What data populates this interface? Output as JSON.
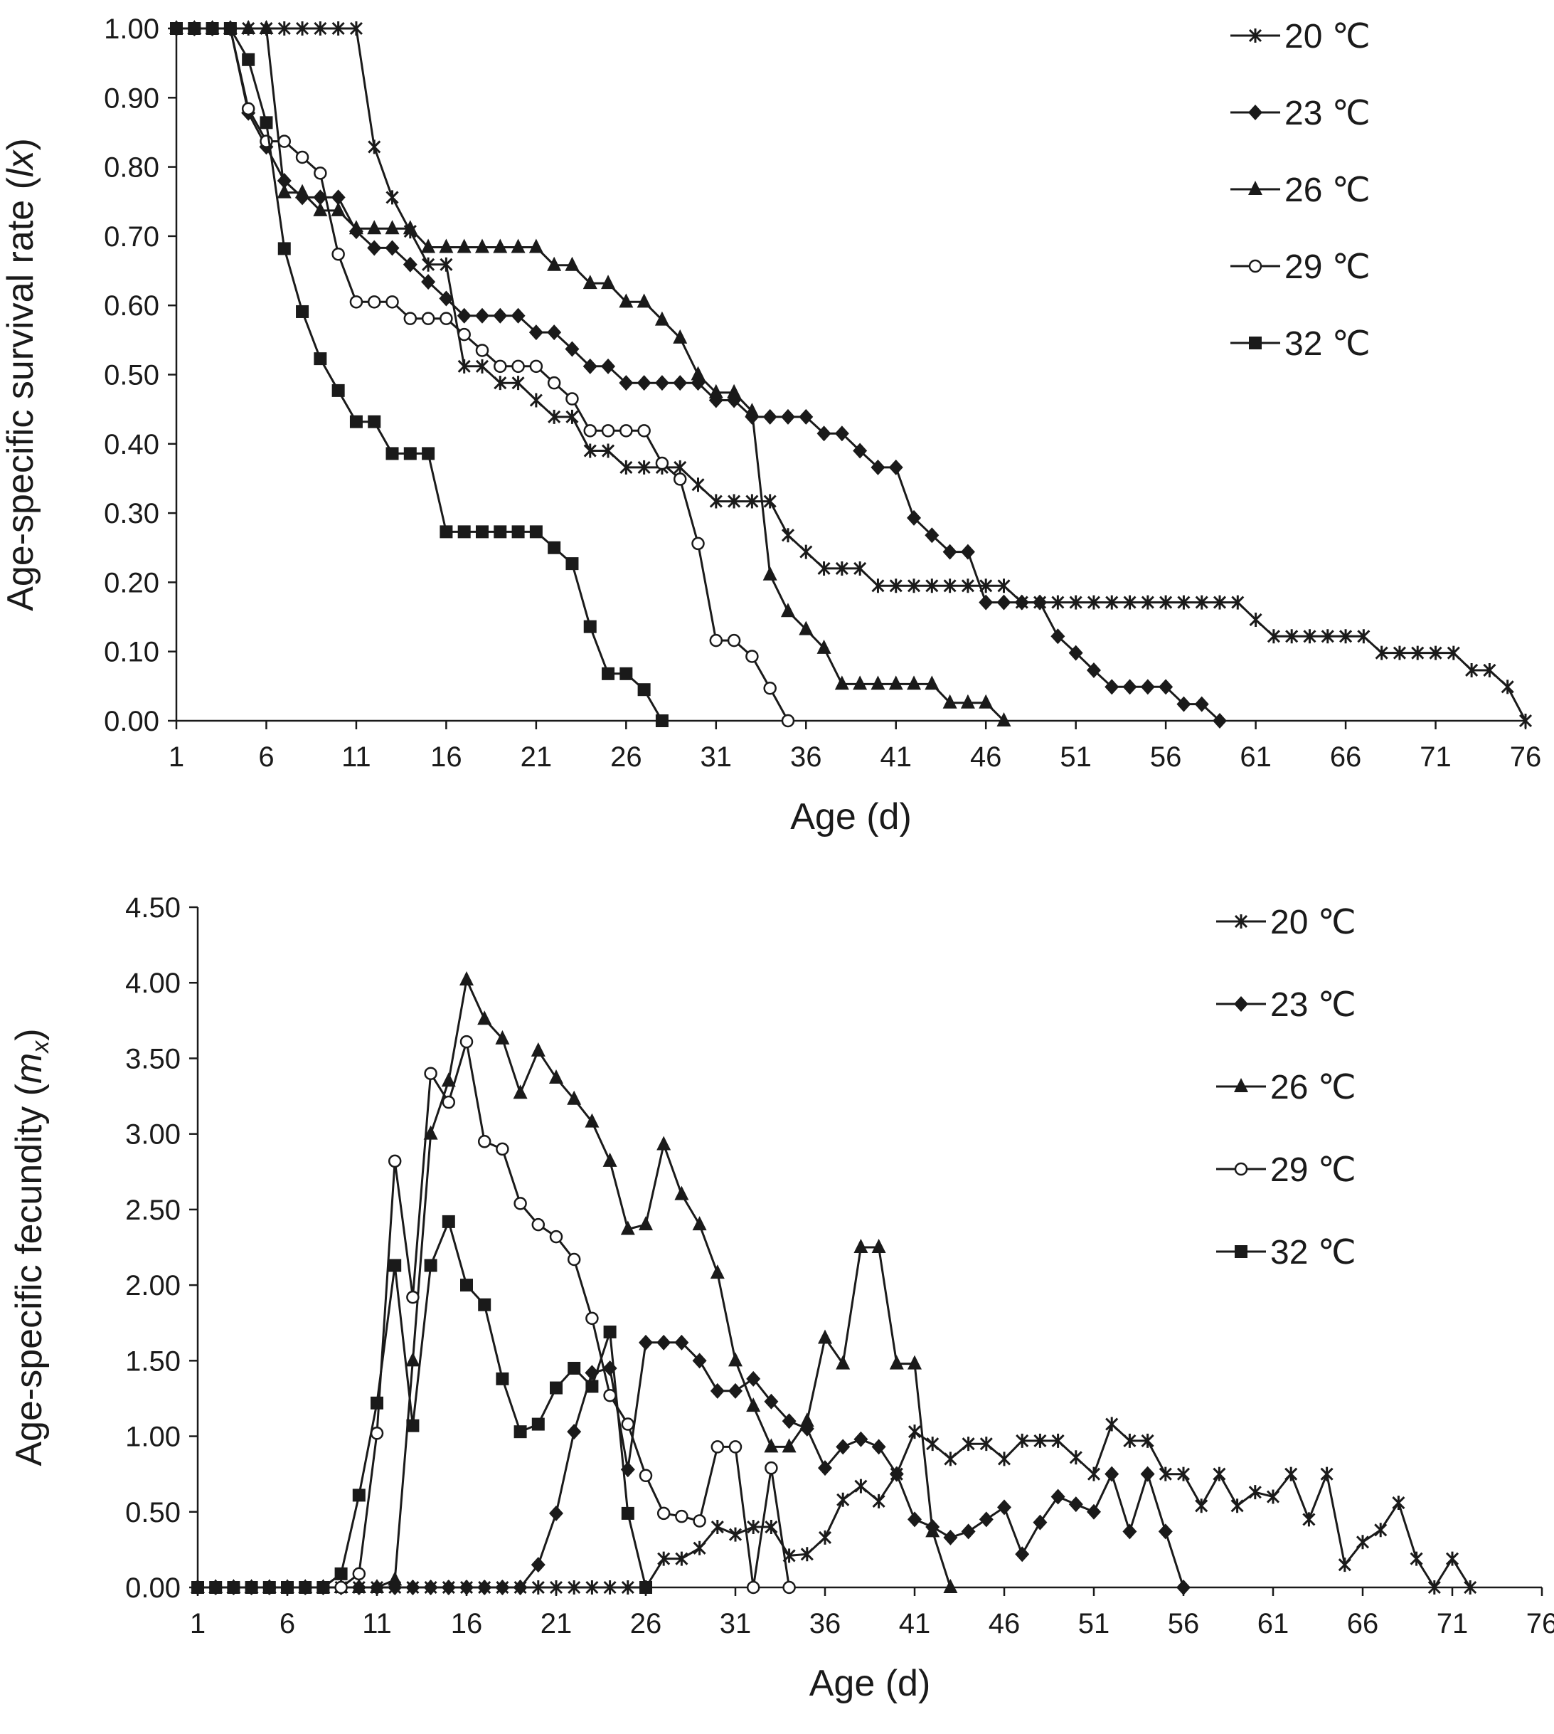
{
  "chart_data": [
    {
      "type": "line",
      "ylabel_prefix": "Age-specific survival rate (",
      "ylabel_symbol": "lx",
      "ylabel_suffix": ")",
      "xlabel": "Age (d)",
      "xlim": [
        1,
        76
      ],
      "ylim": [
        0,
        1
      ],
      "x_ticks": [
        "1",
        "6",
        "11",
        "16",
        "21",
        "26",
        "31",
        "36",
        "41",
        "46",
        "51",
        "56",
        "61",
        "66",
        "71",
        "76"
      ],
      "y_ticks": [
        "0.00",
        "0.10",
        "0.20",
        "0.30",
        "0.40",
        "0.50",
        "0.60",
        "0.70",
        "0.80",
        "0.90",
        "1.00"
      ],
      "grid": false,
      "legend_position": "top-right",
      "series": [
        {
          "name": "20 ℃",
          "marker": "star",
          "x": [
            1,
            2,
            3,
            4,
            5,
            6,
            7,
            8,
            9,
            10,
            11,
            12,
            13,
            14,
            15,
            16,
            17,
            18,
            19,
            20,
            21,
            22,
            23,
            24,
            25,
            26,
            27,
            28,
            29,
            30,
            31,
            32,
            33,
            34,
            35,
            36,
            37,
            38,
            39,
            40,
            41,
            42,
            43,
            44,
            45,
            46,
            47,
            48,
            49,
            50,
            51,
            52,
            53,
            54,
            55,
            56,
            57,
            58,
            59,
            60,
            61,
            62,
            63,
            64,
            65,
            66,
            67,
            68,
            69,
            70,
            71,
            72,
            73,
            74,
            75,
            76
          ],
          "y": [
            1,
            1,
            1,
            1,
            1,
            1,
            1,
            1,
            1,
            1,
            1,
            0.829,
            0.756,
            0.707,
            0.659,
            0.659,
            0.512,
            0.512,
            0.488,
            0.488,
            0.463,
            0.439,
            0.439,
            0.39,
            0.39,
            0.366,
            0.366,
            0.366,
            0.366,
            0.341,
            0.317,
            0.317,
            0.317,
            0.317,
            0.268,
            0.244,
            0.22,
            0.22,
            0.22,
            0.195,
            0.195,
            0.195,
            0.195,
            0.195,
            0.195,
            0.195,
            0.195,
            0.171,
            0.171,
            0.171,
            0.171,
            0.171,
            0.171,
            0.171,
            0.171,
            0.171,
            0.171,
            0.171,
            0.171,
            0.171,
            0.146,
            0.122,
            0.122,
            0.122,
            0.122,
            0.122,
            0.122,
            0.098,
            0.098,
            0.098,
            0.098,
            0.098,
            0.073,
            0.073,
            0.049,
            0
          ]
        },
        {
          "name": "23 ℃",
          "marker": "diamond",
          "x": [
            1,
            2,
            3,
            4,
            5,
            6,
            7,
            8,
            9,
            10,
            11,
            12,
            13,
            14,
            15,
            16,
            17,
            18,
            19,
            20,
            21,
            22,
            23,
            24,
            25,
            26,
            27,
            28,
            29,
            30,
            31,
            32,
            33,
            34,
            35,
            36,
            37,
            38,
            39,
            40,
            41,
            42,
            43,
            44,
            45,
            46,
            47,
            48,
            49,
            50,
            51,
            52,
            53,
            54,
            55,
            56,
            57,
            58,
            59
          ],
          "y": [
            1,
            1,
            1,
            1,
            0.878,
            0.829,
            0.78,
            0.756,
            0.756,
            0.756,
            0.707,
            0.683,
            0.683,
            0.659,
            0.634,
            0.61,
            0.585,
            0.585,
            0.585,
            0.585,
            0.561,
            0.561,
            0.537,
            0.512,
            0.512,
            0.488,
            0.488,
            0.488,
            0.488,
            0.488,
            0.463,
            0.463,
            0.439,
            0.439,
            0.439,
            0.439,
            0.415,
            0.415,
            0.39,
            0.366,
            0.366,
            0.293,
            0.268,
            0.244,
            0.244,
            0.171,
            0.171,
            0.171,
            0.171,
            0.122,
            0.098,
            0.073,
            0.049,
            0.049,
            0.049,
            0.049,
            0.024,
            0.024,
            0
          ]
        },
        {
          "name": "26 ℃",
          "marker": "triangle",
          "x": [
            1,
            2,
            3,
            4,
            5,
            6,
            7,
            8,
            9,
            10,
            11,
            12,
            13,
            14,
            15,
            16,
            17,
            18,
            19,
            20,
            21,
            22,
            23,
            24,
            25,
            26,
            27,
            28,
            29,
            30,
            31,
            32,
            33,
            34,
            35,
            36,
            37,
            38,
            39,
            40,
            41,
            42,
            43,
            44,
            45,
            46,
            47
          ],
          "y": [
            1,
            1,
            1,
            1,
            1,
            1,
            0.763,
            0.763,
            0.737,
            0.737,
            0.711,
            0.711,
            0.711,
            0.711,
            0.684,
            0.684,
            0.684,
            0.684,
            0.684,
            0.684,
            0.684,
            0.658,
            0.658,
            0.632,
            0.632,
            0.605,
            0.605,
            0.579,
            0.553,
            0.5,
            0.474,
            0.474,
            0.447,
            0.211,
            0.158,
            0.132,
            0.105,
            0.053,
            0.053,
            0.053,
            0.053,
            0.053,
            0.053,
            0.026,
            0.026,
            0.026,
            0
          ]
        },
        {
          "name": "29 ℃",
          "marker": "circle",
          "x": [
            1,
            2,
            3,
            4,
            5,
            6,
            7,
            8,
            9,
            10,
            11,
            12,
            13,
            14,
            15,
            16,
            17,
            18,
            19,
            20,
            21,
            22,
            23,
            24,
            25,
            26,
            27,
            28,
            29,
            30,
            31,
            32,
            33,
            34,
            35
          ],
          "y": [
            1,
            1,
            1,
            1,
            0.884,
            0.837,
            0.837,
            0.814,
            0.791,
            0.674,
            0.605,
            0.605,
            0.605,
            0.581,
            0.581,
            0.581,
            0.558,
            0.535,
            0.512,
            0.512,
            0.512,
            0.488,
            0.465,
            0.419,
            0.419,
            0.419,
            0.419,
            0.372,
            0.349,
            0.256,
            0.116,
            0.116,
            0.093,
            0.047,
            0
          ]
        },
        {
          "name": "32 ℃",
          "marker": "square",
          "x": [
            1,
            2,
            3,
            4,
            5,
            6,
            7,
            8,
            9,
            10,
            11,
            12,
            13,
            14,
            15,
            16,
            17,
            18,
            19,
            20,
            21,
            22,
            23,
            24,
            25,
            26,
            27,
            28
          ],
          "y": [
            1,
            1,
            1,
            1,
            0.955,
            0.864,
            0.682,
            0.591,
            0.523,
            0.477,
            0.432,
            0.432,
            0.386,
            0.386,
            0.386,
            0.273,
            0.273,
            0.273,
            0.273,
            0.273,
            0.273,
            0.25,
            0.227,
            0.136,
            0.068,
            0.068,
            0.045,
            0
          ]
        }
      ]
    },
    {
      "type": "line",
      "ylabel_prefix": "Age-specific fecundity (",
      "ylabel_symbol": "m",
      "ylabel_sub": "x",
      "ylabel_suffix": ")",
      "xlabel": "Age (d)",
      "xlim": [
        1,
        76
      ],
      "ylim": [
        0,
        4.5
      ],
      "x_ticks": [
        "1",
        "6",
        "11",
        "16",
        "21",
        "26",
        "31",
        "36",
        "41",
        "46",
        "51",
        "56",
        "61",
        "66",
        "71",
        "76"
      ],
      "y_ticks": [
        "0.00",
        "0.50",
        "1.00",
        "1.50",
        "2.00",
        "2.50",
        "3.00",
        "3.50",
        "4.00",
        "4.50"
      ],
      "grid": false,
      "legend_position": "top-right",
      "series": [
        {
          "name": "20 ℃",
          "marker": "star",
          "x": [
            1,
            2,
            3,
            4,
            5,
            6,
            7,
            8,
            9,
            10,
            11,
            12,
            13,
            14,
            15,
            16,
            17,
            18,
            19,
            20,
            21,
            22,
            23,
            24,
            25,
            26,
            27,
            28,
            29,
            30,
            31,
            32,
            33,
            34,
            35,
            36,
            37,
            38,
            39,
            40,
            41,
            42,
            43,
            44,
            45,
            46,
            47,
            48,
            49,
            50,
            51,
            52,
            53,
            54,
            55,
            56,
            57,
            58,
            59,
            60,
            61,
            62,
            63,
            64,
            65,
            66,
            67,
            68,
            69,
            70,
            71,
            72
          ],
          "y": [
            0,
            0,
            0,
            0,
            0,
            0,
            0,
            0,
            0,
            0,
            0,
            0,
            0,
            0,
            0,
            0,
            0,
            0,
            0,
            0,
            0,
            0,
            0,
            0,
            0,
            0,
            0.19,
            0.19,
            0.26,
            0.4,
            0.35,
            0.4,
            0.4,
            0.21,
            0.22,
            0.33,
            0.58,
            0.67,
            0.57,
            0.75,
            1.03,
            0.95,
            0.85,
            0.95,
            0.95,
            0.85,
            0.97,
            0.97,
            0.97,
            0.86,
            0.75,
            1.08,
            0.97,
            0.97,
            0.75,
            0.75,
            0.54,
            0.75,
            0.54,
            0.63,
            0.6,
            0.75,
            0.45,
            0.75,
            0.15,
            0.3,
            0.38,
            0.56,
            0.19,
            0,
            0.19,
            0
          ]
        },
        {
          "name": "23 ℃",
          "marker": "diamond",
          "x": [
            1,
            2,
            3,
            4,
            5,
            6,
            7,
            8,
            9,
            10,
            11,
            12,
            13,
            14,
            15,
            16,
            17,
            18,
            19,
            20,
            21,
            22,
            23,
            24,
            25,
            26,
            27,
            28,
            29,
            30,
            31,
            32,
            33,
            34,
            35,
            36,
            37,
            38,
            39,
            40,
            41,
            42,
            43,
            44,
            45,
            46,
            47,
            48,
            49,
            50,
            51,
            52,
            53,
            54,
            55,
            56
          ],
          "y": [
            0,
            0,
            0,
            0,
            0,
            0,
            0,
            0,
            0,
            0,
            0,
            0,
            0,
            0,
            0,
            0,
            0,
            0,
            0,
            0.15,
            0.49,
            1.03,
            1.42,
            1.45,
            0.78,
            1.62,
            1.62,
            1.62,
            1.5,
            1.3,
            1.3,
            1.38,
            1.23,
            1.1,
            1.05,
            0.79,
            0.93,
            0.98,
            0.93,
            0.75,
            0.45,
            0.4,
            0.33,
            0.37,
            0.45,
            0.53,
            0.22,
            0.43,
            0.6,
            0.55,
            0.5,
            0.75,
            0.37,
            0.75,
            0.37,
            0
          ]
        },
        {
          "name": "26 ℃",
          "marker": "triangle",
          "x": [
            1,
            2,
            3,
            4,
            5,
            6,
            7,
            8,
            9,
            10,
            11,
            12,
            13,
            14,
            15,
            16,
            17,
            18,
            19,
            20,
            21,
            22,
            23,
            24,
            25,
            26,
            27,
            28,
            29,
            30,
            31,
            32,
            33,
            34,
            35,
            36,
            37,
            38,
            39,
            40,
            41,
            42,
            43
          ],
          "y": [
            0,
            0,
            0,
            0,
            0,
            0,
            0,
            0,
            0,
            0,
            0,
            0.05,
            1.5,
            3.0,
            3.35,
            4.02,
            3.76,
            3.63,
            3.27,
            3.55,
            3.37,
            3.23,
            3.08,
            2.82,
            2.37,
            2.4,
            2.93,
            2.6,
            2.4,
            2.08,
            1.5,
            1.2,
            0.93,
            0.93,
            1.1,
            1.65,
            1.48,
            2.25,
            2.25,
            1.48,
            1.48,
            0.37,
            0
          ]
        },
        {
          "name": "29 ℃",
          "marker": "circle",
          "x": [
            1,
            2,
            3,
            4,
            5,
            6,
            7,
            8,
            9,
            10,
            11,
            12,
            13,
            14,
            15,
            16,
            17,
            18,
            19,
            20,
            21,
            22,
            23,
            24,
            25,
            26,
            27,
            28,
            29,
            30,
            31,
            32,
            33,
            34
          ],
          "y": [
            0,
            0,
            0,
            0,
            0,
            0,
            0,
            0,
            0,
            0.09,
            1.02,
            2.82,
            1.92,
            3.4,
            3.21,
            3.61,
            2.95,
            2.9,
            2.54,
            2.4,
            2.32,
            2.17,
            1.78,
            1.27,
            1.08,
            0.74,
            0.49,
            0.47,
            0.44,
            0.93,
            0.93,
            0,
            0.79,
            0
          ]
        },
        {
          "name": "32 ℃",
          "marker": "square",
          "x": [
            1,
            2,
            3,
            4,
            5,
            6,
            7,
            8,
            9,
            10,
            11,
            12,
            13,
            14,
            15,
            16,
            17,
            18,
            19,
            20,
            21,
            22,
            23,
            24,
            25,
            26
          ],
          "y": [
            0,
            0,
            0,
            0,
            0,
            0,
            0,
            0,
            0.09,
            0.61,
            1.22,
            2.13,
            1.07,
            2.13,
            2.42,
            2.0,
            1.87,
            1.38,
            1.03,
            1.08,
            1.32,
            1.45,
            1.33,
            1.69,
            0.49,
            0
          ]
        }
      ]
    }
  ]
}
